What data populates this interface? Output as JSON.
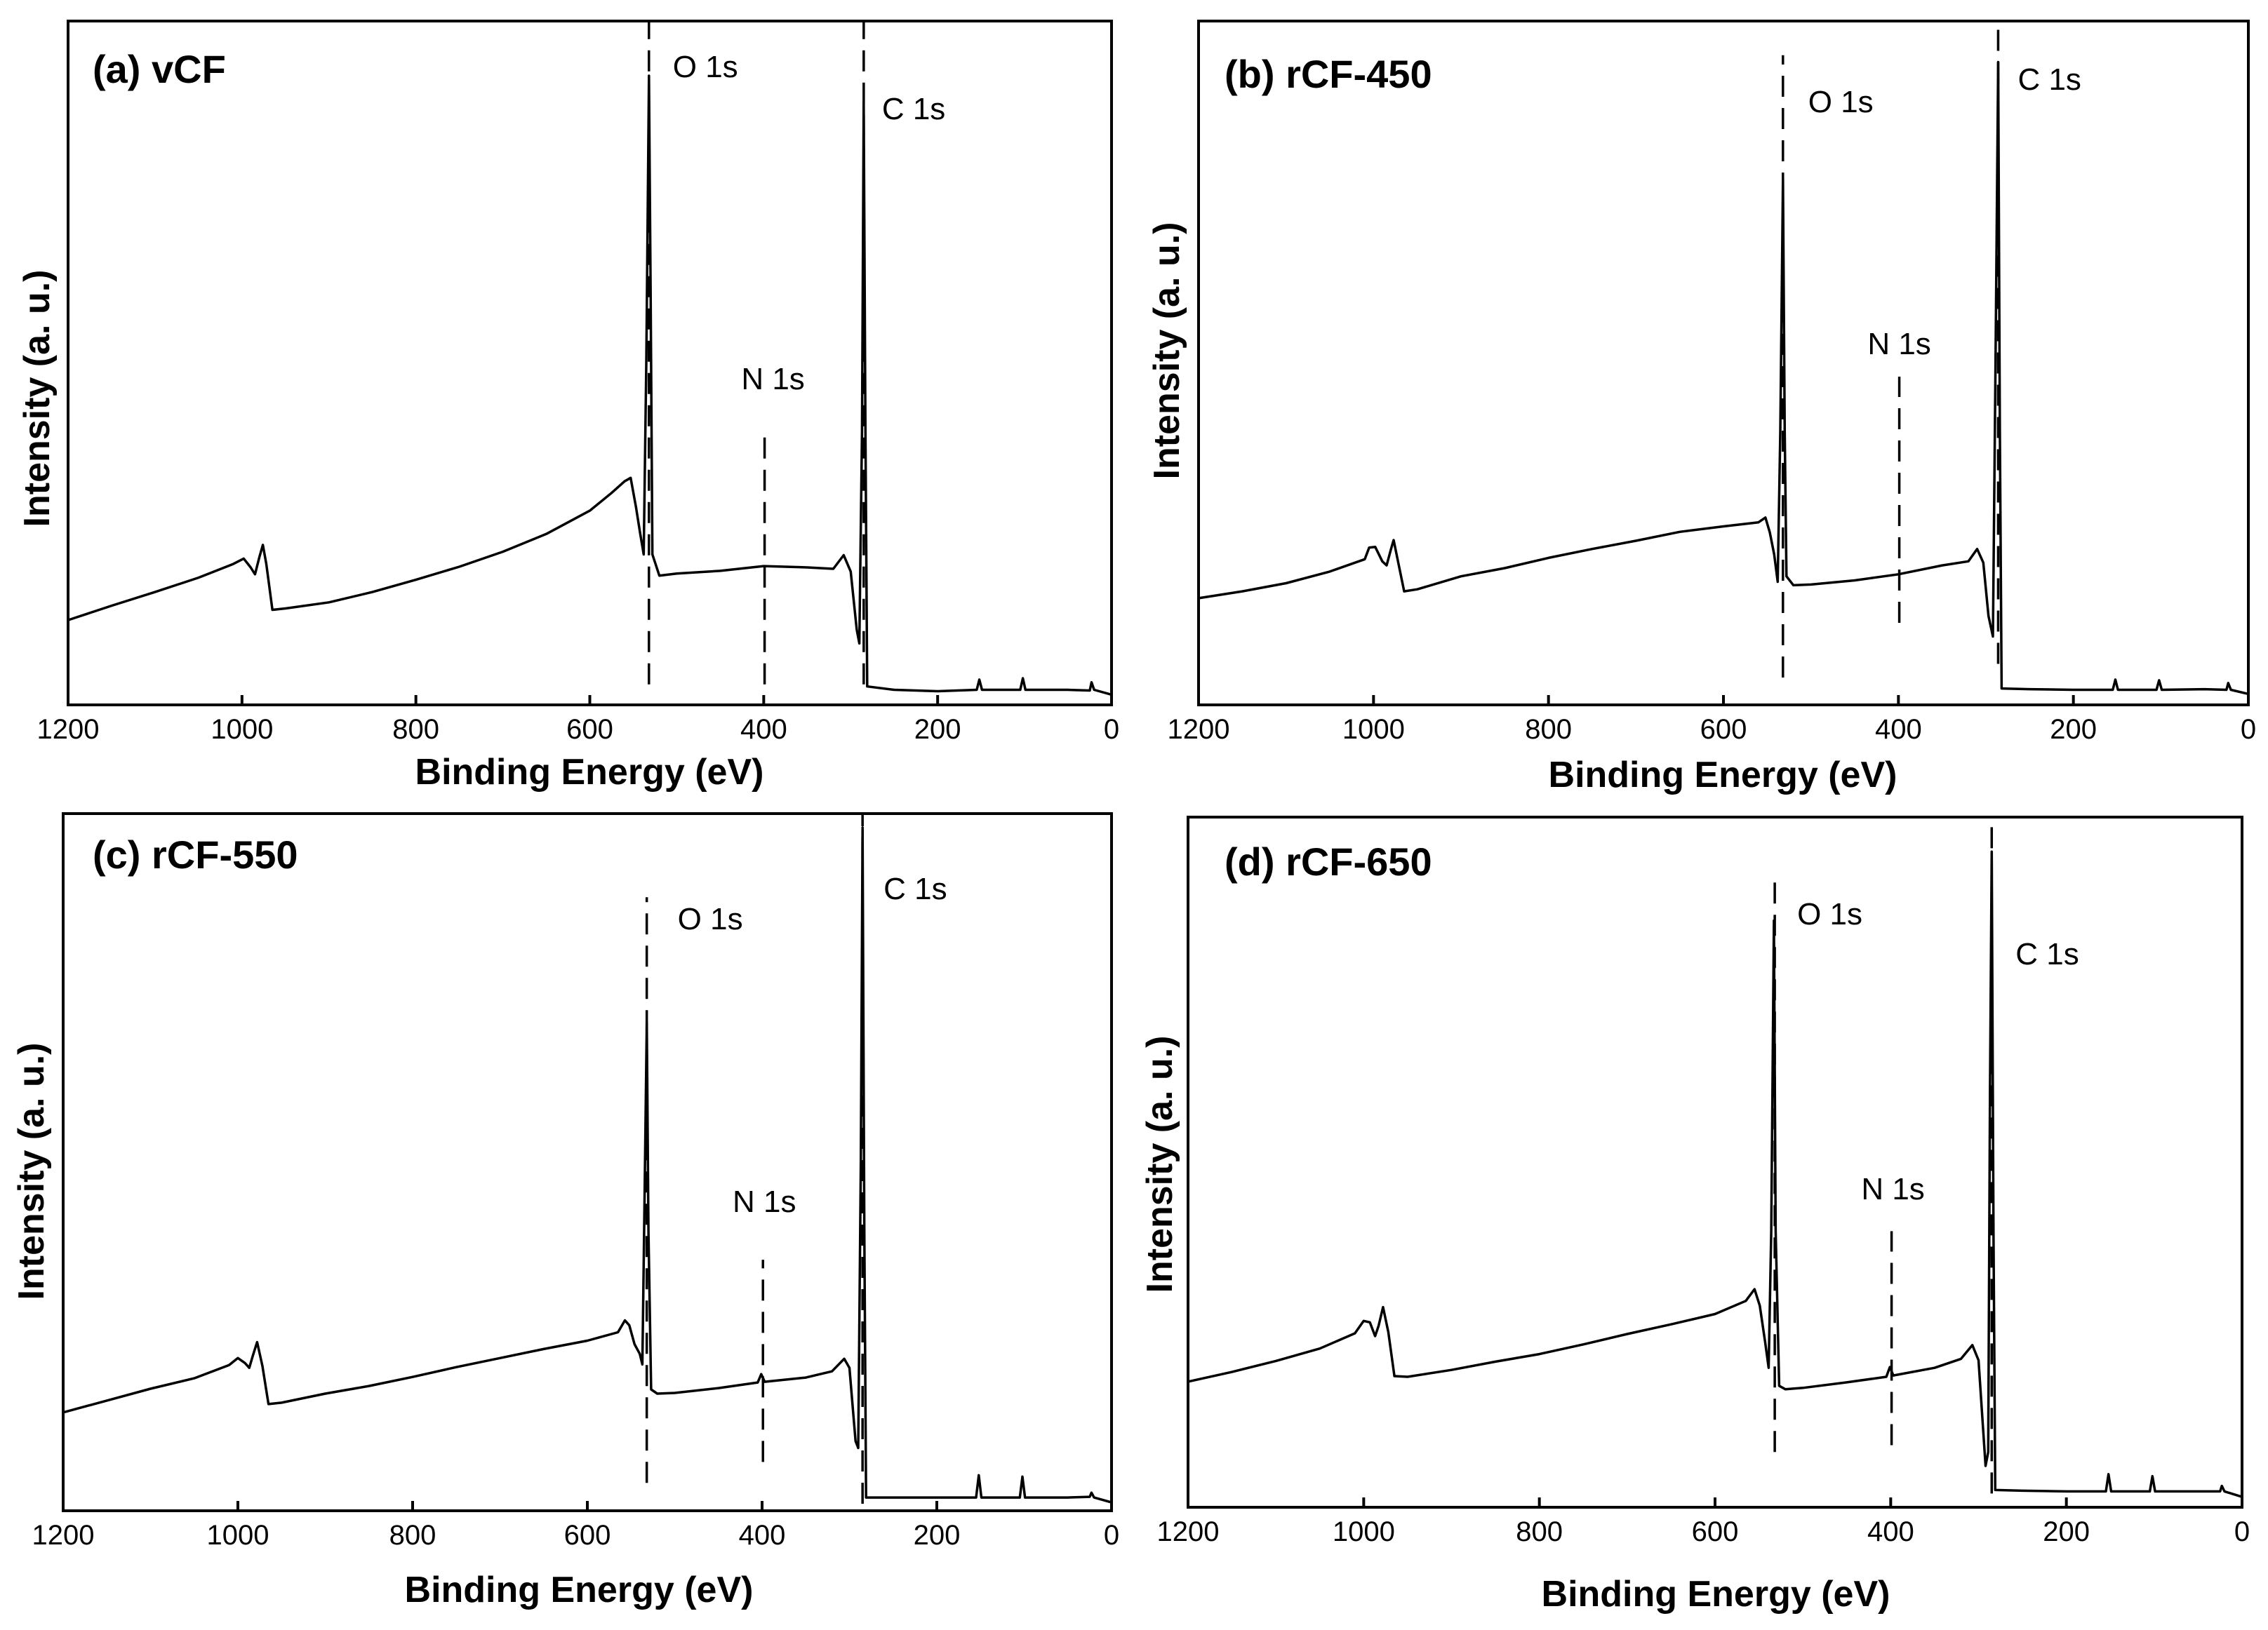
{
  "chart_data": [
    {
      "type": "line",
      "title": "(a) vCF",
      "xlabel": "Binding Energy (eV)",
      "ylabel": "Intensity (a. u.)",
      "xlim": [
        1200,
        0
      ],
      "ylim": [
        0,
        100
      ],
      "xticks": [
        1200,
        1000,
        800,
        600,
        400,
        200,
        0
      ],
      "xtick_labels": [
        "1200",
        "1000",
        "800",
        "600",
        "400",
        "200",
        "0"
      ],
      "grid": false,
      "series": [
        {
          "name": "vCF",
          "points": [
            [
              1200,
              12.4
            ],
            [
              1150,
              14.5
            ],
            [
              1100,
              16.5
            ],
            [
              1050,
              18.6
            ],
            [
              1010,
              20.6
            ],
            [
              998,
              21.4
            ],
            [
              990,
              20.1
            ],
            [
              985,
              19.1
            ],
            [
              980,
              21.6
            ],
            [
              976,
              23.4
            ],
            [
              972,
              20.6
            ],
            [
              965,
              13.9
            ],
            [
              950,
              14.1
            ],
            [
              900,
              15.0
            ],
            [
              850,
              16.5
            ],
            [
              800,
              18.3
            ],
            [
              750,
              20.2
            ],
            [
              700,
              22.4
            ],
            [
              650,
              25.0
            ],
            [
              600,
              28.4
            ],
            [
              575,
              31.0
            ],
            [
              560,
              32.7
            ],
            [
              553,
              33.2
            ],
            [
              547,
              29.0
            ],
            [
              542,
              25.0
            ],
            [
              538,
              22.0
            ],
            [
              535,
              50.0
            ],
            [
              532,
              92.0
            ],
            [
              530,
              60.0
            ],
            [
              528,
              22.0
            ],
            [
              520,
              18.9
            ],
            [
              500,
              19.2
            ],
            [
              450,
              19.6
            ],
            [
              400,
              20.3
            ],
            [
              350,
              20.1
            ],
            [
              320,
              19.9
            ],
            [
              308,
              21.9
            ],
            [
              300,
              19.5
            ],
            [
              293,
              11.0
            ],
            [
              290,
              9.0
            ],
            [
              287,
              40.0
            ],
            [
              285,
              88.0
            ],
            [
              283,
              40.0
            ],
            [
              281,
              2.7
            ],
            [
              250,
              2.2
            ],
            [
              200,
              2.0
            ],
            [
              155,
              2.2
            ],
            [
              152,
              3.7
            ],
            [
              149,
              2.2
            ],
            [
              105,
              2.2
            ],
            [
              102,
              3.9
            ],
            [
              99,
              2.2
            ],
            [
              50,
              2.2
            ],
            [
              25,
              2.1
            ],
            [
              23,
              3.3
            ],
            [
              20,
              2.2
            ],
            [
              0,
              1.5
            ]
          ]
        }
      ],
      "markers": [
        {
          "label": "O 1s",
          "energy": 532,
          "y_from": 3,
          "y_to": 100
        },
        {
          "label": "N 1s",
          "energy": 399,
          "y_from": 3,
          "y_to": 40
        },
        {
          "label": "C 1s",
          "energy": 285,
          "y_from": 3,
          "y_to": 100
        }
      ]
    },
    {
      "type": "line",
      "title": "(b) rCF-450",
      "xlabel": "Binding Energy (eV)",
      "ylabel": "Intensity (a. u.)",
      "xlim": [
        1200,
        0
      ],
      "ylim": [
        0,
        100
      ],
      "xticks": [
        1200,
        1000,
        800,
        600,
        400,
        200,
        0
      ],
      "xtick_labels": [
        "1200",
        "1000",
        "800",
        "600",
        "400",
        "200",
        "0"
      ],
      "grid": false,
      "series": [
        {
          "name": "rCF-450",
          "points": [
            [
              1200,
              15.6
            ],
            [
              1150,
              16.6
            ],
            [
              1100,
              17.8
            ],
            [
              1050,
              19.5
            ],
            [
              1010,
              21.3
            ],
            [
              1005,
              23.0
            ],
            [
              998,
              23.1
            ],
            [
              990,
              21.0
            ],
            [
              985,
              20.4
            ],
            [
              980,
              22.8
            ],
            [
              977,
              24.1
            ],
            [
              972,
              21.0
            ],
            [
              965,
              16.6
            ],
            [
              950,
              16.9
            ],
            [
              900,
              18.8
            ],
            [
              850,
              20.0
            ],
            [
              800,
              21.5
            ],
            [
              750,
              22.8
            ],
            [
              700,
              24.0
            ],
            [
              650,
              25.3
            ],
            [
              600,
              26.1
            ],
            [
              560,
              26.7
            ],
            [
              552,
              27.4
            ],
            [
              547,
              25.2
            ],
            [
              542,
              22.0
            ],
            [
              538,
              18.0
            ],
            [
              535,
              40.0
            ],
            [
              532,
              77.0
            ],
            [
              530,
              40.0
            ],
            [
              528,
              18.8
            ],
            [
              520,
              17.5
            ],
            [
              500,
              17.6
            ],
            [
              450,
              18.2
            ],
            [
              400,
              19.1
            ],
            [
              350,
              20.4
            ],
            [
              320,
              21.0
            ],
            [
              310,
              22.8
            ],
            [
              303,
              20.8
            ],
            [
              297,
              13.0
            ],
            [
              292,
              10.0
            ],
            [
              289,
              50.0
            ],
            [
              286,
              94.0
            ],
            [
              284,
              40.0
            ],
            [
              282,
              2.4
            ],
            [
              250,
              2.3
            ],
            [
              200,
              2.2
            ],
            [
              155,
              2.2
            ],
            [
              152,
              3.7
            ],
            [
              149,
              2.2
            ],
            [
              105,
              2.2
            ],
            [
              102,
              3.6
            ],
            [
              99,
              2.2
            ],
            [
              50,
              2.3
            ],
            [
              25,
              2.2
            ],
            [
              23,
              3.2
            ],
            [
              20,
              2.2
            ],
            [
              0,
              1.6
            ]
          ]
        }
      ],
      "markers": [
        {
          "label": "O 1s",
          "energy": 532,
          "y_from": 4,
          "y_to": 95
        },
        {
          "label": "N 1s",
          "energy": 399,
          "y_from": 12,
          "y_to": 48
        },
        {
          "label": "C 1s",
          "energy": 286,
          "y_from": 6,
          "y_to": 100
        }
      ]
    },
    {
      "type": "line",
      "title": "(c) rCF-550",
      "xlabel": "Binding Energy (eV)",
      "ylabel": "Intensity (a. u.)",
      "xlim": [
        1200,
        0
      ],
      "ylim": [
        0,
        100
      ],
      "xticks": [
        1200,
        1000,
        800,
        600,
        400,
        200,
        0
      ],
      "xtick_labels": [
        "1200",
        "1000",
        "800",
        "600",
        "400",
        "200",
        "0"
      ],
      "grid": false,
      "series": [
        {
          "name": "rCF-550",
          "points": [
            [
              1200,
              14.1
            ],
            [
              1150,
              15.8
            ],
            [
              1100,
              17.5
            ],
            [
              1050,
              19.0
            ],
            [
              1010,
              20.9
            ],
            [
              1000,
              21.9
            ],
            [
              992,
              21.2
            ],
            [
              987,
              20.5
            ],
            [
              983,
              22.2
            ],
            [
              978,
              24.2
            ],
            [
              972,
              20.8
            ],
            [
              965,
              15.3
            ],
            [
              950,
              15.5
            ],
            [
              900,
              16.8
            ],
            [
              850,
              17.9
            ],
            [
              800,
              19.2
            ],
            [
              750,
              20.6
            ],
            [
              700,
              21.9
            ],
            [
              650,
              23.2
            ],
            [
              600,
              24.4
            ],
            [
              565,
              25.6
            ],
            [
              557,
              27.3
            ],
            [
              552,
              26.6
            ],
            [
              546,
              23.9
            ],
            [
              540,
              22.5
            ],
            [
              537,
              21.0
            ],
            [
              535,
              40.0
            ],
            [
              532,
              70.0
            ],
            [
              530,
              40.0
            ],
            [
              527,
              17.4
            ],
            [
              520,
              16.8
            ],
            [
              500,
              16.9
            ],
            [
              450,
              17.6
            ],
            [
              405,
              18.4
            ],
            [
              401,
              19.6
            ],
            [
              397,
              18.5
            ],
            [
              350,
              19.1
            ],
            [
              320,
              20.0
            ],
            [
              306,
              21.8
            ],
            [
              300,
              20.5
            ],
            [
              293,
              10.0
            ],
            [
              290,
              9.0
            ],
            [
              287,
              50.0
            ],
            [
              285,
              98.0
            ],
            [
              283,
              40.0
            ],
            [
              281,
              1.9
            ],
            [
              250,
              1.9
            ],
            [
              200,
              1.9
            ],
            [
              155,
              1.9
            ],
            [
              152,
              5.1
            ],
            [
              149,
              1.9
            ],
            [
              105,
              1.9
            ],
            [
              102,
              4.9
            ],
            [
              99,
              1.9
            ],
            [
              50,
              1.9
            ],
            [
              25,
              2.0
            ],
            [
              23,
              2.6
            ],
            [
              20,
              1.9
            ],
            [
              0,
              1.2
            ]
          ]
        }
      ],
      "markers": [
        {
          "label": "O 1s",
          "energy": 532,
          "y_from": 4,
          "y_to": 88
        },
        {
          "label": "N 1s",
          "energy": 399,
          "y_from": 7,
          "y_to": 36
        },
        {
          "label": "C 1s",
          "energy": 285,
          "y_from": 1,
          "y_to": 100
        }
      ]
    },
    {
      "type": "line",
      "title": "(d) rCF-650",
      "xlabel": "Binding Energy (eV)",
      "ylabel": "Intensity (a. u.)",
      "xlim": [
        1200,
        0
      ],
      "ylim": [
        0,
        100
      ],
      "xticks": [
        1200,
        1000,
        800,
        600,
        400,
        200,
        0
      ],
      "xtick_labels": [
        "1200",
        "1000",
        "800",
        "600",
        "400",
        "200",
        "0"
      ],
      "grid": false,
      "series": [
        {
          "name": "rCF-650",
          "points": [
            [
              1200,
              18.2
            ],
            [
              1150,
              19.6
            ],
            [
              1100,
              21.2
            ],
            [
              1050,
              23.0
            ],
            [
              1010,
              25.2
            ],
            [
              1000,
              27.0
            ],
            [
              993,
              26.8
            ],
            [
              987,
              24.8
            ],
            [
              983,
              26.3
            ],
            [
              978,
              29.0
            ],
            [
              972,
              25.4
            ],
            [
              965,
              19.0
            ],
            [
              950,
              18.9
            ],
            [
              900,
              19.9
            ],
            [
              850,
              21.1
            ],
            [
              800,
              22.2
            ],
            [
              750,
              23.6
            ],
            [
              700,
              25.1
            ],
            [
              650,
              26.5
            ],
            [
              600,
              28.0
            ],
            [
              565,
              29.9
            ],
            [
              555,
              31.6
            ],
            [
              549,
              29.2
            ],
            [
              543,
              24.0
            ],
            [
              539,
              20.2
            ],
            [
              536,
              40.0
            ],
            [
              533,
              85.0
            ],
            [
              531,
              40.0
            ],
            [
              527,
              17.6
            ],
            [
              520,
              17.1
            ],
            [
              500,
              17.3
            ],
            [
              450,
              18.1
            ],
            [
              405,
              18.9
            ],
            [
              401,
              20.3
            ],
            [
              397,
              19.1
            ],
            [
              350,
              20.2
            ],
            [
              320,
              21.5
            ],
            [
              307,
              23.5
            ],
            [
              300,
              21.3
            ],
            [
              292,
              6.0
            ],
            [
              289,
              8.0
            ],
            [
              287,
              60.0
            ],
            [
              285,
              95.0
            ],
            [
              283,
              40.0
            ],
            [
              281,
              2.5
            ],
            [
              250,
              2.4
            ],
            [
              200,
              2.3
            ],
            [
              155,
              2.3
            ],
            [
              152,
              4.8
            ],
            [
              149,
              2.3
            ],
            [
              105,
              2.3
            ],
            [
              102,
              4.5
            ],
            [
              99,
              2.3
            ],
            [
              50,
              2.3
            ],
            [
              25,
              2.3
            ],
            [
              23,
              3.1
            ],
            [
              20,
              2.3
            ],
            [
              0,
              1.5
            ]
          ]
        }
      ],
      "markers": [
        {
          "label": "O 1s",
          "energy": 532,
          "y_from": 8,
          "y_to": 92
        },
        {
          "label": "N 1s",
          "energy": 399,
          "y_from": 9,
          "y_to": 40
        },
        {
          "label": "C 1s",
          "energy": 285,
          "y_from": 2,
          "y_to": 100
        }
      ]
    }
  ]
}
